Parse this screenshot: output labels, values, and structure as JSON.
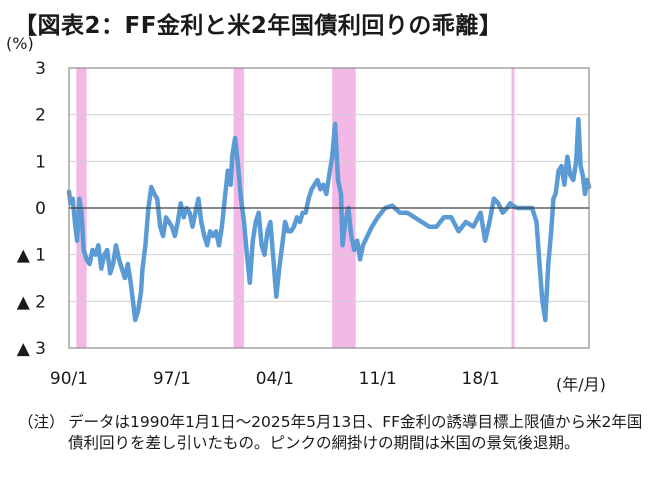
{
  "title": "【図表2：FF金利と米2年国債利回りの乖離】",
  "y_unit": "(%)",
  "x_unit": "(年/月)",
  "note": {
    "label": "（注）",
    "text": "データは1990年1月1日～2025年5月13日、FF金利の誘導目標上限値から米2年国債利回りを差し引いたもの。ピンクの網掛けの期間は米国の景気後退期。"
  },
  "colors": {
    "line": "#5b9bd5",
    "recession": "#f4b8e6",
    "grid": "#d0d0d0",
    "axis": "#8c8c8c"
  },
  "chart_data": {
    "type": "line",
    "title": "",
    "xlabel": "",
    "ylabel": "",
    "xlim": [
      1990.0,
      2025.37
    ],
    "ylim": [
      -3,
      3
    ],
    "x_ticks": [
      {
        "value": 1990.0,
        "label": "90/1"
      },
      {
        "value": 1997.0,
        "label": "97/1"
      },
      {
        "value": 2004.0,
        "label": "04/1"
      },
      {
        "value": 2011.0,
        "label": "11/1"
      },
      {
        "value": 2018.0,
        "label": "18/1"
      }
    ],
    "y_ticks": [
      {
        "value": 3,
        "label": "3"
      },
      {
        "value": 2,
        "label": "2"
      },
      {
        "value": 1,
        "label": "1"
      },
      {
        "value": 0,
        "label": "0"
      },
      {
        "value": -1,
        "label": "▲ 1"
      },
      {
        "value": -2,
        "label": "▲ 2"
      },
      {
        "value": -3,
        "label": "▲ 3"
      }
    ],
    "recessions": [
      [
        1990.5,
        1991.2
      ],
      [
        2001.2,
        2001.9
      ],
      [
        2007.9,
        2009.5
      ],
      [
        2020.1,
        2020.3
      ]
    ],
    "series": [
      {
        "x": [
          1990.0,
          1990.1,
          1990.25,
          1990.4,
          1990.55,
          1990.7,
          1990.85,
          1991.0,
          1991.2,
          1991.4,
          1991.6,
          1991.8,
          1992.0,
          1992.2,
          1992.4,
          1992.6,
          1992.8,
          1993.0,
          1993.2,
          1993.4,
          1993.6,
          1993.8,
          1994.0,
          1994.2,
          1994.35,
          1994.5,
          1994.7,
          1994.9,
          1995.0,
          1995.2,
          1995.4,
          1995.6,
          1995.8,
          1996.0,
          1996.2,
          1996.4,
          1996.6,
          1996.8,
          1997.0,
          1997.2,
          1997.4,
          1997.6,
          1997.8,
          1998.0,
          1998.2,
          1998.4,
          1998.6,
          1998.8,
          1999.0,
          1999.2,
          1999.4,
          1999.6,
          1999.8,
          2000.0,
          2000.2,
          2000.4,
          2000.6,
          2000.8,
          2001.0,
          2001.1,
          2001.3,
          2001.5,
          2001.7,
          2001.9,
          2002.1,
          2002.3,
          2002.5,
          2002.7,
          2002.9,
          2003.1,
          2003.3,
          2003.5,
          2003.7,
          2003.9,
          2004.1,
          2004.3,
          2004.5,
          2004.7,
          2004.9,
          2005.1,
          2005.3,
          2005.5,
          2005.7,
          2005.9,
          2006.1,
          2006.3,
          2006.5,
          2006.7,
          2006.9,
          2007.1,
          2007.3,
          2007.5,
          2007.7,
          2007.9,
          2008.1,
          2008.3,
          2008.5,
          2008.6,
          2008.8,
          2009.0,
          2009.2,
          2009.4,
          2009.6,
          2009.8,
          2010.0,
          2010.3,
          2010.6,
          2011.0,
          2011.5,
          2012.0,
          2012.5,
          2013.0,
          2013.5,
          2014.0,
          2014.5,
          2015.0,
          2015.5,
          2016.0,
          2016.5,
          2017.0,
          2017.5,
          2018.0,
          2018.3,
          2018.6,
          2018.9,
          2019.2,
          2019.5,
          2019.8,
          2020.0,
          2020.2,
          2020.5,
          2021.0,
          2021.5,
          2021.8,
          2022.0,
          2022.2,
          2022.4,
          2022.6,
          2022.8,
          2022.95,
          2023.1,
          2023.3,
          2023.5,
          2023.7,
          2023.9,
          2024.1,
          2024.3,
          2024.5,
          2024.65,
          2024.8,
          2024.95,
          2025.1,
          2025.25,
          2025.37
        ],
        "values": [
          0.35,
          0.1,
          0.2,
          -0.3,
          -0.7,
          0.2,
          -0.1,
          -0.9,
          -1.1,
          -1.2,
          -0.9,
          -1.0,
          -0.8,
          -1.3,
          -1.0,
          -0.9,
          -1.4,
          -1.2,
          -0.8,
          -1.1,
          -1.3,
          -1.5,
          -1.2,
          -1.6,
          -2.0,
          -2.4,
          -2.2,
          -1.8,
          -1.3,
          -0.8,
          0.0,
          0.45,
          0.3,
          0.2,
          -0.4,
          -0.6,
          -0.2,
          -0.3,
          -0.4,
          -0.6,
          -0.3,
          0.1,
          -0.2,
          0.0,
          -0.1,
          -0.4,
          -0.1,
          0.2,
          -0.3,
          -0.6,
          -0.8,
          -0.5,
          -0.6,
          -0.5,
          -0.8,
          -0.4,
          0.2,
          0.8,
          0.5,
          1.1,
          1.5,
          0.9,
          0.2,
          -0.3,
          -1.0,
          -1.6,
          -0.7,
          -0.3,
          -0.1,
          -0.8,
          -1.0,
          -0.5,
          -0.3,
          -1.1,
          -1.9,
          -1.3,
          -0.8,
          -0.3,
          -0.5,
          -0.5,
          -0.4,
          -0.2,
          -0.3,
          -0.1,
          -0.1,
          0.2,
          0.4,
          0.5,
          0.6,
          0.4,
          0.5,
          0.3,
          0.7,
          1.1,
          1.8,
          0.6,
          0.3,
          -0.8,
          -0.3,
          0.0,
          -0.6,
          -0.9,
          -0.7,
          -1.1,
          -0.8,
          -0.6,
          -0.4,
          -0.2,
          0.0,
          0.05,
          -0.1,
          -0.1,
          -0.2,
          -0.3,
          -0.4,
          -0.4,
          -0.2,
          -0.2,
          -0.5,
          -0.3,
          -0.4,
          -0.1,
          -0.7,
          -0.3,
          0.2,
          0.1,
          -0.1,
          0.0,
          0.1,
          0.05,
          0.0,
          0.0,
          0.0,
          -0.3,
          -1.2,
          -2.0,
          -2.4,
          -1.2,
          -0.5,
          0.2,
          0.3,
          0.8,
          0.9,
          0.5,
          1.1,
          0.7,
          0.6,
          1.0,
          1.9,
          0.9,
          0.7,
          0.3,
          0.6,
          0.45
        ]
      }
    ]
  }
}
